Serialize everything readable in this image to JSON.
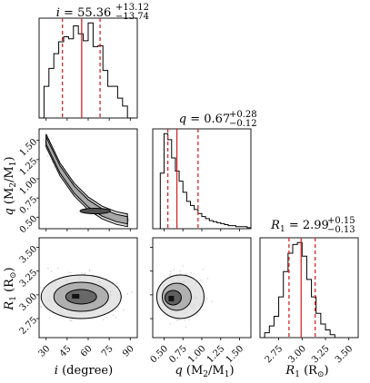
{
  "figure": {
    "type": "corner_plot",
    "median_line_color": "#d62728",
    "quantile_line_color": "#d62728",
    "quantile_line_style": "dashed",
    "histogram_color": "#000000",
    "contour_color": "#000000",
    "background": "#ffffff"
  },
  "titles": {
    "i": {
      "name": "i",
      "value": "55.36",
      "plus": "+13.12",
      "minus": "−13.74"
    },
    "q": {
      "name": "q",
      "value": "0.67",
      "plus": "+0.28",
      "minus": "−0.12"
    },
    "R1": {
      "name": "R",
      "sub": "1",
      "value": "2.99",
      "plus": "+0.15",
      "minus": "−0.13"
    }
  },
  "axis_labels": {
    "x_i": {
      "main": "i",
      "unit": "(degree)"
    },
    "x_q": {
      "main": "q",
      "unit": "(M",
      "sub1": "2",
      "mid": "/M",
      "sub2": "1",
      "end": ")"
    },
    "x_R1": {
      "main": "R",
      "sub": "1",
      "unit": "(R",
      "sym": "⊙",
      "end": ")"
    },
    "y_q": {
      "main": "q",
      "unit": "(M",
      "sub1": "2",
      "mid": "/M",
      "sub2": "1",
      "end": ")"
    },
    "y_R1": {
      "main": "R",
      "sub": "1",
      "unit": "(R",
      "sym": "⊙",
      "end": ")"
    }
  },
  "chart_data": [
    {
      "type": "histogram",
      "parameter": "i",
      "xlim": [
        25,
        95
      ],
      "xticks": [
        "30",
        "45",
        "60",
        "75",
        "90"
      ],
      "bin_edges": [
        25,
        28.5,
        32,
        35.5,
        39,
        42.5,
        46,
        49.5,
        53,
        56.5,
        60,
        63.5,
        67,
        70.5,
        74,
        77.5,
        81,
        84.5,
        88,
        91.5
      ],
      "counts": [
        0,
        0.32,
        0.5,
        0.65,
        0.77,
        0.82,
        0.8,
        0.93,
        0.85,
        0.78,
        0.96,
        0.72,
        0.73,
        0.48,
        0.32,
        0.32,
        0.2,
        0.12,
        0
      ],
      "median": 55.36,
      "quantile_16": 41.62,
      "quantile_84": 68.48
    },
    {
      "type": "histogram",
      "parameter": "q",
      "xlim": [
        0.35,
        1.65
      ],
      "xticks": [
        "0.50",
        "0.75",
        "1.00",
        "1.25",
        "1.50"
      ],
      "bin_edges": [
        0.45,
        0.5,
        0.55,
        0.6,
        0.65,
        0.7,
        0.75,
        0.8,
        0.85,
        0.9,
        0.95,
        1.0,
        1.05,
        1.1,
        1.15,
        1.2,
        1.25,
        1.3,
        1.35,
        1.4,
        1.45,
        1.5,
        1.55,
        1.6,
        1.65
      ],
      "counts": [
        0.55,
        0.94,
        0.88,
        0.7,
        0.57,
        0.47,
        0.36,
        0.27,
        0.23,
        0.19,
        0.15,
        0.12,
        0.1,
        0.08,
        0.07,
        0.06,
        0.05,
        0.04,
        0.03,
        0.03,
        0.02,
        0.02,
        0.02,
        0.01
      ],
      "median": 0.67,
      "quantile_16": 0.55,
      "quantile_84": 0.95
    },
    {
      "type": "histogram",
      "parameter": "R1",
      "xlim": [
        2.55,
        3.6
      ],
      "xticks": [
        "2.75",
        "3.00",
        "3.25",
        "3.50"
      ],
      "bin_edges": [
        2.6,
        2.65,
        2.7,
        2.75,
        2.8,
        2.85,
        2.9,
        2.95,
        3.0,
        3.05,
        3.1,
        3.15,
        3.2,
        3.25,
        3.3,
        3.35
      ],
      "counts": [
        0.05,
        0.12,
        0.22,
        0.42,
        0.68,
        0.87,
        0.96,
        0.98,
        0.84,
        0.6,
        0.42,
        0.25,
        0.14,
        0.08,
        0.03
      ],
      "median": 2.99,
      "quantile_16": 2.86,
      "quantile_84": 3.14
    },
    {
      "type": "contour_2d",
      "x_parameter": "i",
      "y_parameter": "q",
      "xlim": [
        25,
        95
      ],
      "ylim": [
        0.35,
        1.65
      ],
      "yticks": [
        "0.50",
        "0.75",
        "1.00",
        "1.25",
        "1.50"
      ],
      "ridge": [
        {
          "x": 30,
          "y": 1.5
        },
        {
          "x": 40,
          "y": 1.12
        },
        {
          "x": 50,
          "y": 0.86
        },
        {
          "x": 60,
          "y": 0.68
        },
        {
          "x": 70,
          "y": 0.56
        },
        {
          "x": 80,
          "y": 0.49
        },
        {
          "x": 88,
          "y": 0.46
        }
      ],
      "dense_core": {
        "x": [
          52,
          78
        ],
        "y": [
          0.5,
          0.72
        ]
      }
    },
    {
      "type": "contour_2d",
      "x_parameter": "i",
      "y_parameter": "R1",
      "xlim": [
        25,
        95
      ],
      "ylim": [
        2.55,
        3.6
      ],
      "yticks": [
        "2.75",
        "3.00",
        "3.25",
        "3.50"
      ],
      "center": {
        "x": 55,
        "y": 2.98
      },
      "dense_core": {
        "x": [
          45,
          72
        ],
        "y": [
          2.88,
          3.08
        ]
      }
    },
    {
      "type": "contour_2d",
      "x_parameter": "q",
      "y_parameter": "R1",
      "xlim": [
        0.35,
        1.65
      ],
      "ylim": [
        2.55,
        3.6
      ],
      "center": {
        "x": 0.62,
        "y": 2.98
      },
      "dense_core": {
        "x": [
          0.5,
          0.68
        ],
        "y": [
          2.9,
          3.02
        ]
      }
    }
  ]
}
